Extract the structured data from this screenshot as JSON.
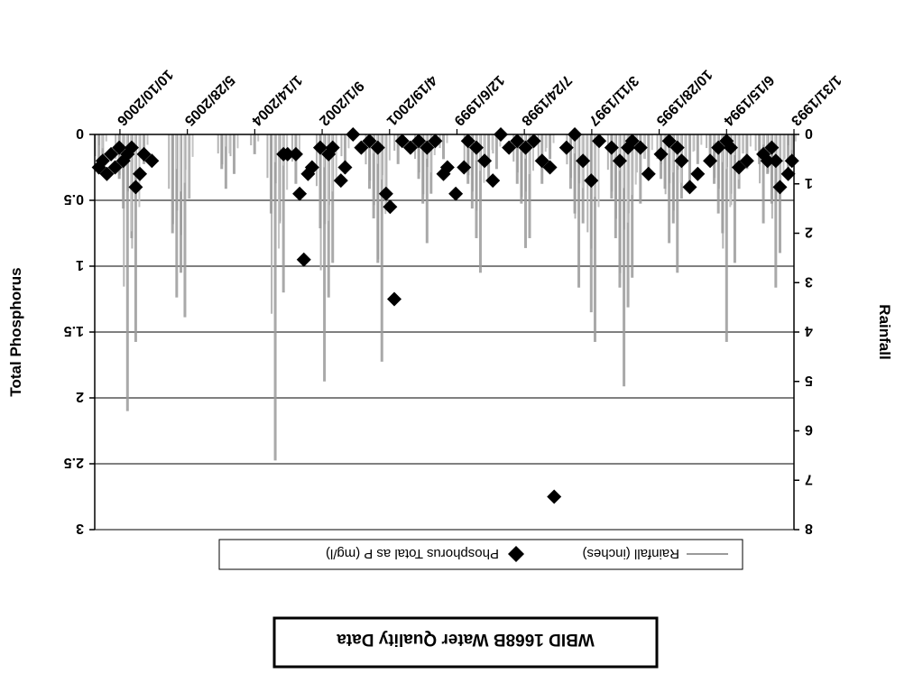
{
  "chart_data": {
    "type": "bar+scatter",
    "title": "WBID 1668B Water Quality Data",
    "ylabel_left": "Rainfall",
    "ylabel_right": "Total Phosphorus",
    "ylim_left": [
      0,
      8
    ],
    "ylim_right": [
      0,
      3
    ],
    "right_axis_inverted": true,
    "left_ticks": [
      "0",
      "1",
      "2",
      "3",
      "4",
      "5",
      "6",
      "7",
      "8"
    ],
    "right_ticks": [
      "0",
      "0.5",
      "1",
      "1.5",
      "2",
      "2.5",
      "3"
    ],
    "x_ticks": [
      "1/31/1993",
      "6/15/1994",
      "10/28/1995",
      "3/11/1997",
      "7/24/1998",
      "12/6/1999",
      "4/19/2001",
      "9/1/2002",
      "1/14/2004",
      "5/28/2005",
      "10/10/2006"
    ],
    "grid": true,
    "legend_position": "bottom",
    "series": [
      {
        "name": "Rainfall (inches)",
        "kind": "bar",
        "axis": "left",
        "color": "#9a9a9a",
        "points": [
          [
            "1993-02",
            0.4
          ],
          [
            "1993-03",
            0.9
          ],
          [
            "1993-05",
            2.4
          ],
          [
            "1993-06",
            3.1
          ],
          [
            "1993-07",
            1.4
          ],
          [
            "1993-08",
            0.8
          ],
          [
            "1993-09",
            1.8
          ],
          [
            "1993-10",
            0.6
          ],
          [
            "1994-01",
            0.7
          ],
          [
            "1994-03",
            1.1
          ],
          [
            "1994-04",
            2.6
          ],
          [
            "1994-05",
            1.2
          ],
          [
            "1994-06",
            4.2
          ],
          [
            "1994-07",
            2.0
          ],
          [
            "1994-08",
            1.6
          ],
          [
            "1994-09",
            1.0
          ],
          [
            "1994-10",
            0.5
          ],
          [
            "1995-01",
            0.6
          ],
          [
            "1995-03",
            1.0
          ],
          [
            "1995-05",
            1.3
          ],
          [
            "1995-06",
            2.8
          ],
          [
            "1995-07",
            1.8
          ],
          [
            "1995-08",
            2.2
          ],
          [
            "1995-09",
            1.1
          ],
          [
            "1995-10",
            0.9
          ],
          [
            "1996-01",
            0.9
          ],
          [
            "1996-03",
            1.4
          ],
          [
            "1996-05",
            2.9
          ],
          [
            "1996-06",
            3.5
          ],
          [
            "1996-07",
            5.1
          ],
          [
            "1996-08",
            3.1
          ],
          [
            "1996-09",
            2.1
          ],
          [
            "1996-10",
            1.3
          ],
          [
            "1997-02",
            4.2
          ],
          [
            "1997-03",
            3.6
          ],
          [
            "1997-05",
            1.8
          ],
          [
            "1997-06",
            3.1
          ],
          [
            "1997-07",
            1.6
          ],
          [
            "1997-08",
            1.1
          ],
          [
            "1998-01",
            0.5
          ],
          [
            "1998-03",
            1.0
          ],
          [
            "1998-06",
            2.1
          ],
          [
            "1998-07",
            2.3
          ],
          [
            "1998-08",
            1.4
          ],
          [
            "1998-09",
            1.0
          ],
          [
            "1999-02",
            0.7
          ],
          [
            "1999-04",
            0.9
          ],
          [
            "1999-06",
            2.8
          ],
          [
            "1999-07",
            2.1
          ],
          [
            "1999-08",
            1.5
          ],
          [
            "1999-09",
            1.0
          ],
          [
            "2000-03",
            0.5
          ],
          [
            "2000-06",
            1.2
          ],
          [
            "2000-07",
            2.2
          ],
          [
            "2000-08",
            1.4
          ],
          [
            "2000-09",
            0.9
          ],
          [
            "2001-02",
            0.6
          ],
          [
            "2001-05",
            1.5
          ],
          [
            "2001-06",
            4.6
          ],
          [
            "2001-07",
            2.6
          ],
          [
            "2001-08",
            1.7
          ],
          [
            "2001-09",
            1.1
          ],
          [
            "2002-03",
            0.8
          ],
          [
            "2002-06",
            2.6
          ],
          [
            "2002-07",
            3.3
          ],
          [
            "2002-08",
            5.0
          ],
          [
            "2002-09",
            1.9
          ],
          [
            "2003-03",
            1.0
          ],
          [
            "2003-06",
            3.2
          ],
          [
            "2003-07",
            1.8
          ],
          [
            "2003-08",
            6.6
          ],
          [
            "2003-09",
            1.6
          ],
          [
            "2004-01",
            0.4
          ],
          [
            "2004-06",
            0.8
          ],
          [
            "2004-08",
            1.1
          ],
          [
            "2004-09",
            0.7
          ],
          [
            "2005-05",
            1.3
          ],
          [
            "2005-06",
            3.7
          ],
          [
            "2005-07",
            2.8
          ],
          [
            "2005-08",
            3.3
          ],
          [
            "2005-09",
            2.0
          ],
          [
            "2006-04",
            0.6
          ],
          [
            "2006-06",
            4.2
          ],
          [
            "2006-07",
            2.1
          ],
          [
            "2006-08",
            5.6
          ],
          [
            "2006-09",
            1.5
          ],
          [
            "2006-10",
            0.9
          ],
          [
            "2007-02",
            0.4
          ],
          [
            "2007-03",
            0.8
          ]
        ]
      },
      {
        "name": "Phosphorus Total as P (mg/l)",
        "kind": "scatter",
        "axis": "right",
        "color": "#000000",
        "marker": "diamond",
        "points": [
          [
            "1993-02",
            0.2
          ],
          [
            "1993-03",
            0.3
          ],
          [
            "1993-05",
            0.4
          ],
          [
            "1993-06",
            0.2
          ],
          [
            "1993-07",
            0.1
          ],
          [
            "1993-08",
            0.2
          ],
          [
            "1993-09",
            0.15
          ],
          [
            "1994-01",
            0.2
          ],
          [
            "1994-03",
            0.25
          ],
          [
            "1994-05",
            0.1
          ],
          [
            "1994-06",
            0.05
          ],
          [
            "1994-08",
            0.1
          ],
          [
            "1994-10",
            0.2
          ],
          [
            "1995-01",
            0.3
          ],
          [
            "1995-03",
            0.4
          ],
          [
            "1995-05",
            0.2
          ],
          [
            "1995-06",
            0.1
          ],
          [
            "1995-08",
            0.05
          ],
          [
            "1995-10",
            0.15
          ],
          [
            "1996-01",
            0.3
          ],
          [
            "1996-03",
            0.1
          ],
          [
            "1996-05",
            0.05
          ],
          [
            "1996-06",
            0.1
          ],
          [
            "1996-08",
            0.2
          ],
          [
            "1996-10",
            0.1
          ],
          [
            "1997-01",
            0.05
          ],
          [
            "1997-03",
            0.35
          ],
          [
            "1997-05",
            0.2
          ],
          [
            "1997-07",
            0.0
          ],
          [
            "1997-09",
            0.1
          ],
          [
            "1997-12",
            2.75
          ],
          [
            "1998-01",
            0.25
          ],
          [
            "1998-03",
            0.2
          ],
          [
            "1998-05",
            0.05
          ],
          [
            "1998-07",
            0.1
          ],
          [
            "1998-09",
            0.05
          ],
          [
            "1998-11",
            0.1
          ],
          [
            "1999-01",
            0.0
          ],
          [
            "1999-03",
            0.35
          ],
          [
            "1999-05",
            0.2
          ],
          [
            "1999-07",
            0.1
          ],
          [
            "1999-09",
            0.05
          ],
          [
            "1999-10",
            0.25
          ],
          [
            "1999-12",
            0.45
          ],
          [
            "2000-02",
            0.25
          ],
          [
            "2000-03",
            0.3
          ],
          [
            "2000-05",
            0.05
          ],
          [
            "2000-07",
            0.1
          ],
          [
            "2000-09",
            0.05
          ],
          [
            "2000-11",
            0.1
          ],
          [
            "2001-01",
            0.05
          ],
          [
            "2001-03",
            1.25
          ],
          [
            "2001-04",
            0.55
          ],
          [
            "2001-05",
            0.45
          ],
          [
            "2001-07",
            0.1
          ],
          [
            "2001-09",
            0.05
          ],
          [
            "2001-11",
            0.1
          ],
          [
            "2002-01",
            0.0
          ],
          [
            "2002-03",
            0.25
          ],
          [
            "2002-04",
            0.35
          ],
          [
            "2002-06",
            0.1
          ],
          [
            "2002-07",
            0.15
          ],
          [
            "2002-09",
            0.1
          ],
          [
            "2002-11",
            0.25
          ],
          [
            "2002-12",
            0.3
          ],
          [
            "2003-01",
            0.95
          ],
          [
            "2003-02",
            0.45
          ],
          [
            "2003-03",
            0.15
          ],
          [
            "2003-05",
            0.15
          ],
          [
            "2003-06",
            0.15
          ],
          [
            "2006-02",
            0.2
          ],
          [
            "2006-04",
            0.15
          ],
          [
            "2006-05",
            0.3
          ],
          [
            "2006-06",
            0.4
          ],
          [
            "2006-07",
            0.1
          ],
          [
            "2006-08",
            0.15
          ],
          [
            "2006-09",
            0.2
          ],
          [
            "2006-10",
            0.1
          ],
          [
            "2006-11",
            0.25
          ],
          [
            "2006-12",
            0.15
          ],
          [
            "2007-01",
            0.3
          ],
          [
            "2007-02",
            0.2
          ],
          [
            "2007-03",
            0.25
          ]
        ]
      }
    ]
  }
}
